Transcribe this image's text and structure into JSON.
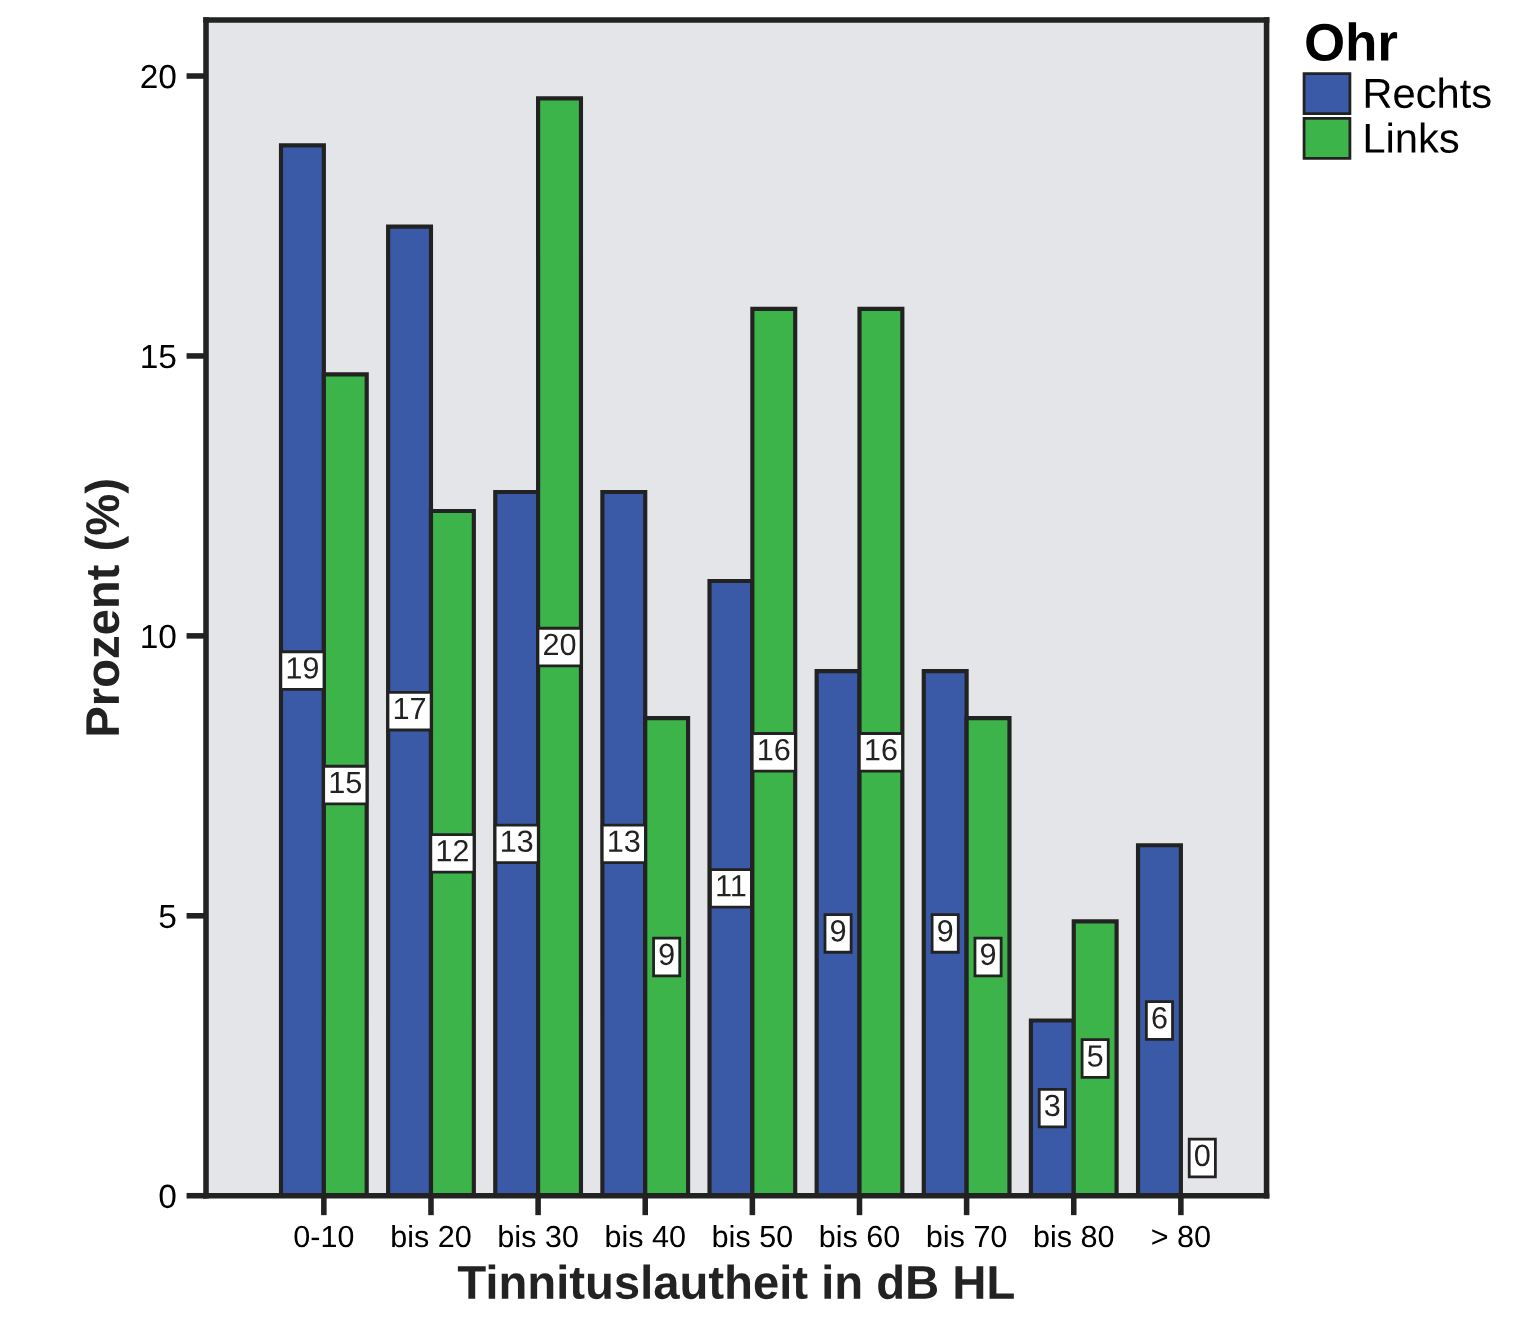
{
  "chart_data": {
    "type": "bar",
    "xlabel": "Tinnituslautheit in dB HL",
    "ylabel": "Prozent (%)",
    "legend_title": "Ohr",
    "legend": "top right",
    "grid": false,
    "categories": [
      "0-10",
      "bis 20",
      "bis 30",
      "bis 40",
      "bis 50",
      "bis 60",
      "bis 70",
      "bis 80",
      "> 80"
    ],
    "ylim": [
      0,
      21
    ],
    "yticks": [
      0,
      5,
      10,
      15,
      20
    ],
    "series": [
      {
        "name": "Rechts",
        "color": "#3a5aa8",
        "values": [
          18.76,
          17.31,
          12.57,
          12.57,
          10.98,
          9.37,
          9.37,
          3.13,
          6.26
        ],
        "value_labels": [
          "19",
          "17",
          "13",
          "13",
          "11",
          "9",
          "9",
          "3",
          "6"
        ]
      },
      {
        "name": "Links",
        "color": "#3cb44a",
        "values": [
          14.67,
          12.23,
          19.6,
          8.53,
          15.84,
          15.84,
          8.53,
          4.9,
          0
        ],
        "value_labels": [
          "15",
          "12",
          "20",
          "9",
          "16",
          "16",
          "9",
          "5",
          "0"
        ]
      }
    ]
  }
}
